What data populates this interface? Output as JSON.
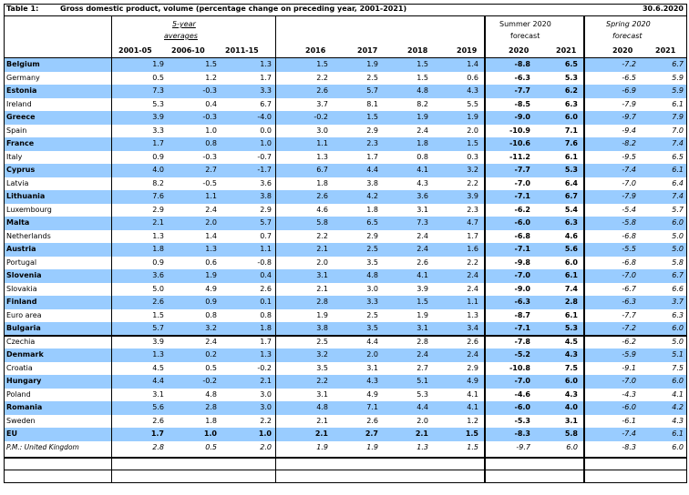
{
  "title": {
    "label": "Table 1:",
    "text": "Gross domestic product, volume (percentage change on preceding year, 2001-2021)",
    "date": "30.6.2020"
  },
  "groups": {
    "five_year_line1": "5-year",
    "five_year_line2": "averages",
    "summer_line1": "Summer 2020",
    "summer_line2": "forecast",
    "spring_line1": "Spring 2020",
    "spring_line2": "forecast"
  },
  "columns": [
    "",
    "2001-05",
    "2006-10",
    "2011-15",
    "2016",
    "2017",
    "2018",
    "2019",
    "2020",
    "2021",
    "2020",
    "2021"
  ],
  "rows": [
    {
      "name": "Belgium",
      "values": [
        "1.9",
        "1.5",
        "1.3",
        "1.5",
        "1.9",
        "1.5",
        "1.4",
        "-8.8",
        "6.5",
        "-7.2",
        "6.7"
      ],
      "blue": true,
      "bold": true
    },
    {
      "name": "Germany",
      "values": [
        "0.5",
        "1.2",
        "1.7",
        "2.2",
        "2.5",
        "1.5",
        "0.6",
        "-6.3",
        "5.3",
        "-6.5",
        "5.9"
      ],
      "blue": false,
      "bold": false
    },
    {
      "name": "Estonia",
      "values": [
        "7.3",
        "-0.3",
        "3.3",
        "2.6",
        "5.7",
        "4.8",
        "4.3",
        "-7.7",
        "6.2",
        "-6.9",
        "5.9"
      ],
      "blue": true,
      "bold": true
    },
    {
      "name": "Ireland",
      "values": [
        "5.3",
        "0.4",
        "6.7",
        "3.7",
        "8.1",
        "8.2",
        "5.5",
        "-8.5",
        "6.3",
        "-7.9",
        "6.1"
      ],
      "blue": false,
      "bold": false
    },
    {
      "name": "Greece",
      "values": [
        "3.9",
        "-0.3",
        "-4.0",
        "-0.2",
        "1.5",
        "1.9",
        "1.9",
        "-9.0",
        "6.0",
        "-9.7",
        "7.9"
      ],
      "blue": true,
      "bold": true
    },
    {
      "name": "Spain",
      "values": [
        "3.3",
        "1.0",
        "0.0",
        "3.0",
        "2.9",
        "2.4",
        "2.0",
        "-10.9",
        "7.1",
        "-9.4",
        "7.0"
      ],
      "blue": false,
      "bold": false
    },
    {
      "name": "France",
      "values": [
        "1.7",
        "0.8",
        "1.0",
        "1.1",
        "2.3",
        "1.8",
        "1.5",
        "-10.6",
        "7.6",
        "-8.2",
        "7.4"
      ],
      "blue": true,
      "bold": true
    },
    {
      "name": "Italy",
      "values": [
        "0.9",
        "-0.3",
        "-0.7",
        "1.3",
        "1.7",
        "0.8",
        "0.3",
        "-11.2",
        "6.1",
        "-9.5",
        "6.5"
      ],
      "blue": false,
      "bold": false
    },
    {
      "name": "Cyprus",
      "values": [
        "4.0",
        "2.7",
        "-1.7",
        "6.7",
        "4.4",
        "4.1",
        "3.2",
        "-7.7",
        "5.3",
        "-7.4",
        "6.1"
      ],
      "blue": true,
      "bold": true
    },
    {
      "name": "Latvia",
      "values": [
        "8.2",
        "-0.5",
        "3.6",
        "1.8",
        "3.8",
        "4.3",
        "2.2",
        "-7.0",
        "6.4",
        "-7.0",
        "6.4"
      ],
      "blue": false,
      "bold": false
    },
    {
      "name": "Lithuania",
      "values": [
        "7.6",
        "1.1",
        "3.8",
        "2.6",
        "4.2",
        "3.6",
        "3.9",
        "-7.1",
        "6.7",
        "-7.9",
        "7.4"
      ],
      "blue": true,
      "bold": true
    },
    {
      "name": "Luxembourg",
      "values": [
        "2.9",
        "2.4",
        "2.9",
        "4.6",
        "1.8",
        "3.1",
        "2.3",
        "-6.2",
        "5.4",
        "-5.4",
        "5.7"
      ],
      "blue": false,
      "bold": false
    },
    {
      "name": "Malta",
      "values": [
        "2.1",
        "2.0",
        "5.7",
        "5.8",
        "6.5",
        "7.3",
        "4.7",
        "-6.0",
        "6.3",
        "-5.8",
        "6.0"
      ],
      "blue": true,
      "bold": true
    },
    {
      "name": "Netherlands",
      "values": [
        "1.3",
        "1.4",
        "0.7",
        "2.2",
        "2.9",
        "2.4",
        "1.7",
        "-6.8",
        "4.6",
        "-6.8",
        "5.0"
      ],
      "blue": false,
      "bold": false
    },
    {
      "name": "Austria",
      "values": [
        "1.8",
        "1.3",
        "1.1",
        "2.1",
        "2.5",
        "2.4",
        "1.6",
        "-7.1",
        "5.6",
        "-5.5",
        "5.0"
      ],
      "blue": true,
      "bold": true
    },
    {
      "name": "Portugal",
      "values": [
        "0.9",
        "0.6",
        "-0.8",
        "2.0",
        "3.5",
        "2.6",
        "2.2",
        "-9.8",
        "6.0",
        "-6.8",
        "5.8"
      ],
      "blue": false,
      "bold": false
    },
    {
      "name": "Slovenia",
      "values": [
        "3.6",
        "1.9",
        "0.4",
        "3.1",
        "4.8",
        "4.1",
        "2.4",
        "-7.0",
        "6.1",
        "-7.0",
        "6.7"
      ],
      "blue": true,
      "bold": true
    },
    {
      "name": "Slovakia",
      "values": [
        "5.0",
        "4.9",
        "2.6",
        "2.1",
        "3.0",
        "3.9",
        "2.4",
        "-9.0",
        "7.4",
        "-6.7",
        "6.6"
      ],
      "blue": false,
      "bold": false
    },
    {
      "name": "Finland",
      "values": [
        "2.6",
        "0.9",
        "0.1",
        "2.8",
        "3.3",
        "1.5",
        "1.1",
        "-6.3",
        "2.8",
        "-6.3",
        "3.7"
      ],
      "blue": true,
      "bold": true
    },
    {
      "name": "Euro area",
      "values": [
        "1.5",
        "0.8",
        "0.8",
        "1.9",
        "2.5",
        "1.9",
        "1.3",
        "-8.7",
        "6.1",
        "-7.7",
        "6.3"
      ],
      "blue": false,
      "bold": false
    },
    {
      "name": "Bulgaria",
      "values": [
        "5.7",
        "3.2",
        "1.8",
        "3.8",
        "3.5",
        "3.1",
        "3.4",
        "-7.1",
        "5.3",
        "-7.2",
        "6.0"
      ],
      "blue": true,
      "bold": true
    },
    {
      "name": "Czechia",
      "values": [
        "3.9",
        "2.4",
        "1.7",
        "2.5",
        "4.4",
        "2.8",
        "2.6",
        "-7.8",
        "4.5",
        "-6.2",
        "5.0"
      ],
      "blue": false,
      "bold": false
    },
    {
      "name": "Denmark",
      "values": [
        "1.3",
        "0.2",
        "1.3",
        "3.2",
        "2.0",
        "2.4",
        "2.4",
        "-5.2",
        "4.3",
        "-5.9",
        "5.1"
      ],
      "blue": true,
      "bold": true
    },
    {
      "name": "Croatia",
      "values": [
        "4.5",
        "0.5",
        "-0.2",
        "3.5",
        "3.1",
        "2.7",
        "2.9",
        "-10.8",
        "7.5",
        "-9.1",
        "7.5"
      ],
      "blue": false,
      "bold": false
    },
    {
      "name": "Hungary",
      "values": [
        "4.4",
        "-0.2",
        "2.1",
        "2.2",
        "4.3",
        "5.1",
        "4.9",
        "-7.0",
        "6.0",
        "-7.0",
        "6.0"
      ],
      "blue": true,
      "bold": true
    },
    {
      "name": "Poland",
      "values": [
        "3.1",
        "4.8",
        "3.0",
        "3.1",
        "4.9",
        "5.3",
        "4.1",
        "-4.6",
        "4.3",
        "-4.3",
        "4.1"
      ],
      "blue": false,
      "bold": false
    },
    {
      "name": "Romania",
      "values": [
        "5.6",
        "2.8",
        "3.0",
        "4.8",
        "7.1",
        "4.4",
        "4.1",
        "-6.0",
        "4.0",
        "-6.0",
        "4.2"
      ],
      "blue": true,
      "bold": true
    },
    {
      "name": "Sweden",
      "values": [
        "2.6",
        "1.8",
        "2.2",
        "2.1",
        "2.6",
        "2.0",
        "1.2",
        "-5.3",
        "3.1",
        "-6.1",
        "4.3"
      ],
      "blue": false,
      "bold": false
    },
    {
      "name": "EU",
      "values": [
        "1.7",
        "1.0",
        "1.0",
        "2.1",
        "2.7",
        "2.1",
        "1.5",
        "-8.3",
        "5.8",
        "-7.4",
        "6.1"
      ],
      "blue": true,
      "bold": true,
      "eu": true
    },
    {
      "name": "P.M.: United Kingdom",
      "values": [
        "2.8",
        "0.5",
        "2.0",
        "1.9",
        "1.9",
        "1.3",
        "1.5",
        "-9.7",
        "6.0",
        "-8.3",
        "6.0"
      ],
      "blue": false,
      "bold": false,
      "pm": true
    }
  ]
}
